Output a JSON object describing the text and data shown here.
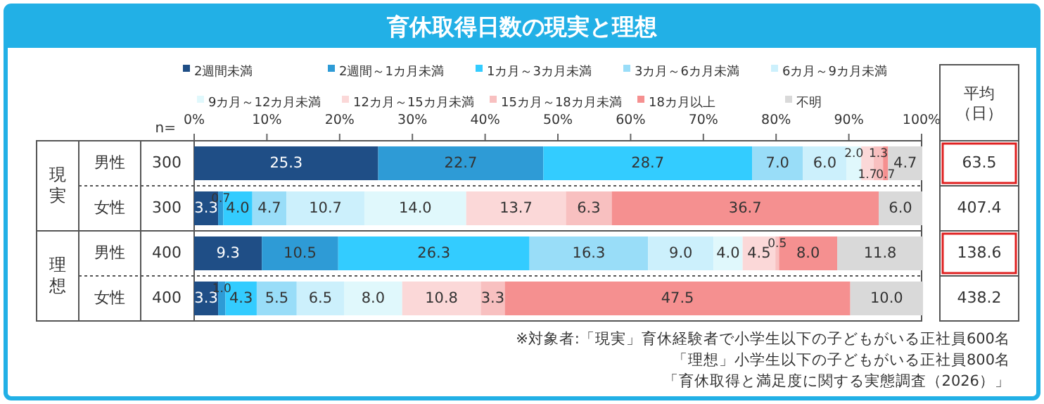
{
  "chart_data": {
    "type": "bar",
    "orientation": "horizontal",
    "stacked": true,
    "title": "育休取得日数の現実と理想",
    "categories": [
      "男性",
      "女性",
      "男性",
      "女性"
    ],
    "series": [
      {
        "name": "2週間未満",
        "color": "#1f4e86",
        "values": [
          25.3,
          3.3,
          9.3,
          3.3
        ]
      },
      {
        "name": "2週間～1カ月未満",
        "color": "#2e9bd6",
        "values": [
          22.7,
          0.7,
          10.5,
          1.0
        ]
      },
      {
        "name": "1カ月～3カ月未満",
        "color": "#33ccff",
        "values": [
          28.7,
          4.0,
          26.3,
          4.3
        ]
      },
      {
        "name": "3カ月～6カ月未満",
        "color": "#99ddf8",
        "values": [
          7.0,
          4.7,
          16.3,
          5.5
        ]
      },
      {
        "name": "6カ月～9カ月未満",
        "color": "#ccf0fc",
        "values": [
          6.0,
          10.7,
          9.0,
          6.5
        ]
      },
      {
        "name": "9カ月～12カ月未満",
        "color": "#e0f8fc",
        "values": [
          2.0,
          14.0,
          4.0,
          8.0
        ]
      },
      {
        "name": "12カ月～15カ月未満",
        "color": "#fbd8d8",
        "values": [
          1.7,
          13.7,
          4.5,
          10.8
        ]
      },
      {
        "name": "15カ月～18カ月未満",
        "color": "#f8c0c0",
        "values": [
          1.3,
          6.3,
          0.5,
          3.3
        ]
      },
      {
        "name": "18カ月以上",
        "color": "#f59090",
        "values": [
          0.7,
          36.7,
          8.0,
          47.5
        ]
      },
      {
        "name": "不明",
        "color": "#d9d9d9",
        "values": [
          4.7,
          6.0,
          11.8,
          10.0
        ]
      }
    ],
    "xlim": [
      0,
      100
    ],
    "xticks": [
      {
        "value": 0,
        "label": "0%"
      },
      {
        "value": 10,
        "label": "10%"
      },
      {
        "value": 20,
        "label": "20%"
      },
      {
        "value": 30,
        "label": "30%"
      },
      {
        "value": 40,
        "label": "40%"
      },
      {
        "value": 50,
        "label": "50%"
      },
      {
        "value": 60,
        "label": "60%"
      },
      {
        "value": 70,
        "label": "70%"
      },
      {
        "value": 80,
        "label": "80%"
      },
      {
        "value": 90,
        "label": "90%"
      },
      {
        "value": 100,
        "label": "100%"
      }
    ],
    "value_labels": [
      [
        "25.3",
        "3.3",
        "9.3",
        "3.3"
      ],
      [
        "22.7",
        "0.7",
        "10.5",
        "1.0"
      ],
      [
        "28.7",
        "4.0",
        "26.3",
        "4.3"
      ],
      [
        "7.0",
        "4.7",
        "16.3",
        "5.5"
      ],
      [
        "6.0",
        "10.7",
        "9.0",
        "6.5"
      ],
      [
        "2.0",
        "14.0",
        "4.0",
        "8.0"
      ],
      [
        "1.7",
        "13.7",
        "4.5",
        "10.8"
      ],
      [
        "1.3",
        "6.3",
        "0.5",
        "3.3"
      ],
      [
        "0.7",
        "36.7",
        "8.0",
        "47.5"
      ],
      [
        "4.7",
        "6.0",
        "11.8",
        "10.0"
      ]
    ],
    "legend": "top",
    "grid": false,
    "annotations": [
      "n=",
      "300",
      "300",
      "400",
      "400",
      "現実",
      "理想",
      "平均（日）",
      "63.5",
      "407.4",
      "138.6",
      "438.2",
      "※対象者:「現実」育休経験者で小学生以下の子どもがいる正社員600名",
      "「理想」小学生以下の子どもがいる正社員800名",
      "「育休取得と満足度に関する実態調査（2026）」"
    ]
  }
}
